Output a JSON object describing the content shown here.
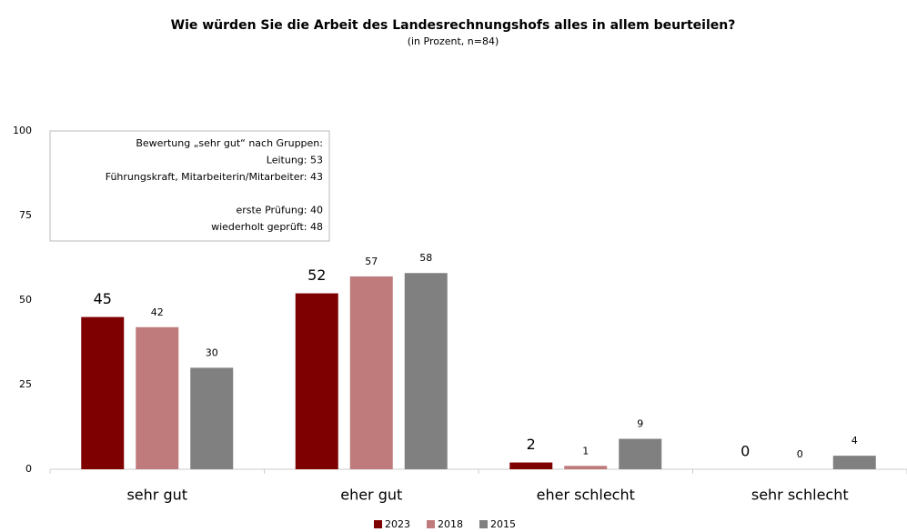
{
  "chart_data": {
    "type": "bar",
    "title": "Wie würden Sie die Arbeit des Landesrechnungshofs alles in allem beurteilen?",
    "subtitle": "(in Prozent, n=84)",
    "categories": [
      "sehr gut",
      "eher gut",
      "eher schlecht",
      "sehr schlecht"
    ],
    "series": [
      {
        "name": "2023",
        "color": "#7f0000",
        "values": [
          45,
          52,
          2,
          0
        ]
      },
      {
        "name": "2018",
        "color": "#bf7b7b",
        "values": [
          42,
          57,
          1,
          0
        ]
      },
      {
        "name": "2015",
        "color": "#808080",
        "values": [
          30,
          58,
          9,
          4
        ]
      }
    ],
    "ylim": [
      0,
      100
    ],
    "yticks": [
      0,
      25,
      50,
      75,
      100
    ],
    "grid": false,
    "legend": "bottom",
    "annotation": [
      [
        "Bewertung „sehr gut“ nach Gruppen:",
        "Leitung: 53",
        "Führungskraft, Mitarbeiterin/Mitarbeiter: 43"
      ],
      [
        "erste Prüfung: 40",
        "wiederholt geprüft: 48"
      ]
    ]
  }
}
